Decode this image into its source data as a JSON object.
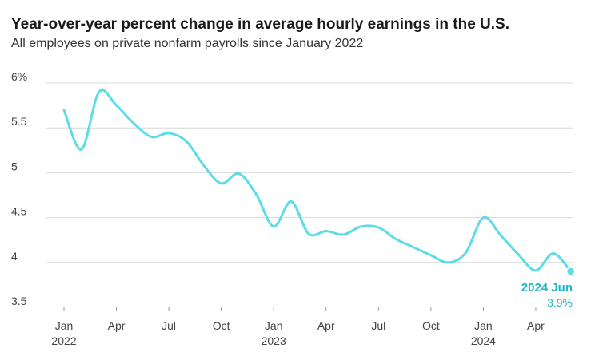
{
  "header": {
    "title": "Year-over-year percent change in average hourly earnings in the U.S.",
    "subtitle": "All employees on private nonfarm payrolls since January 2022"
  },
  "chart_data": {
    "type": "line",
    "title": "Year-over-year percent change in average hourly earnings in the U.S.",
    "subtitle": "All employees on private nonfarm payrolls since January 2022",
    "xlabel": "",
    "ylabel": "",
    "ylim": [
      3.5,
      6
    ],
    "yticks": [
      {
        "value": 6,
        "label": "6%"
      },
      {
        "value": 5.5,
        "label": "5.5"
      },
      {
        "value": 5,
        "label": "5"
      },
      {
        "value": 4.5,
        "label": "4.5"
      },
      {
        "value": 4,
        "label": "4"
      },
      {
        "value": 3.5,
        "label": "3.5"
      }
    ],
    "xticks": [
      {
        "month": 0,
        "label": "Jan",
        "year": "2022"
      },
      {
        "month": 3,
        "label": "Apr",
        "year": ""
      },
      {
        "month": 6,
        "label": "Jul",
        "year": ""
      },
      {
        "month": 9,
        "label": "Oct",
        "year": ""
      },
      {
        "month": 12,
        "label": "Jan",
        "year": "2023"
      },
      {
        "month": 15,
        "label": "Apr",
        "year": ""
      },
      {
        "month": 18,
        "label": "Jul",
        "year": ""
      },
      {
        "month": 21,
        "label": "Oct",
        "year": ""
      },
      {
        "month": 24,
        "label": "Jan",
        "year": "2024"
      },
      {
        "month": 27,
        "label": "Apr",
        "year": ""
      }
    ],
    "grid": true,
    "legend": "none",
    "color": "#5cdde6",
    "annotation_color": "#20b6c8",
    "series": [
      {
        "x": [
          "2022-01",
          "2022-02",
          "2022-03",
          "2022-04",
          "2022-05",
          "2022-06",
          "2022-07",
          "2022-08",
          "2022-09",
          "2022-10",
          "2022-11",
          "2022-12",
          "2023-01",
          "2023-02",
          "2023-03",
          "2023-04",
          "2023-05",
          "2023-06",
          "2023-07",
          "2023-08",
          "2023-09",
          "2023-10",
          "2023-11",
          "2023-12",
          "2024-01",
          "2024-02",
          "2024-03",
          "2024-04",
          "2024-05",
          "2024-06"
        ],
        "values": [
          5.7,
          5.26,
          5.9,
          5.75,
          5.55,
          5.4,
          5.44,
          5.35,
          5.08,
          4.88,
          4.99,
          4.76,
          4.4,
          4.68,
          4.32,
          4.35,
          4.31,
          4.4,
          4.39,
          4.26,
          4.17,
          4.08,
          4.0,
          4.11,
          4.5,
          4.3,
          4.09,
          3.91,
          4.1,
          3.9
        ]
      }
    ],
    "annotation": {
      "date_label": "2024 Jun",
      "value_label": "3.9%"
    }
  }
}
